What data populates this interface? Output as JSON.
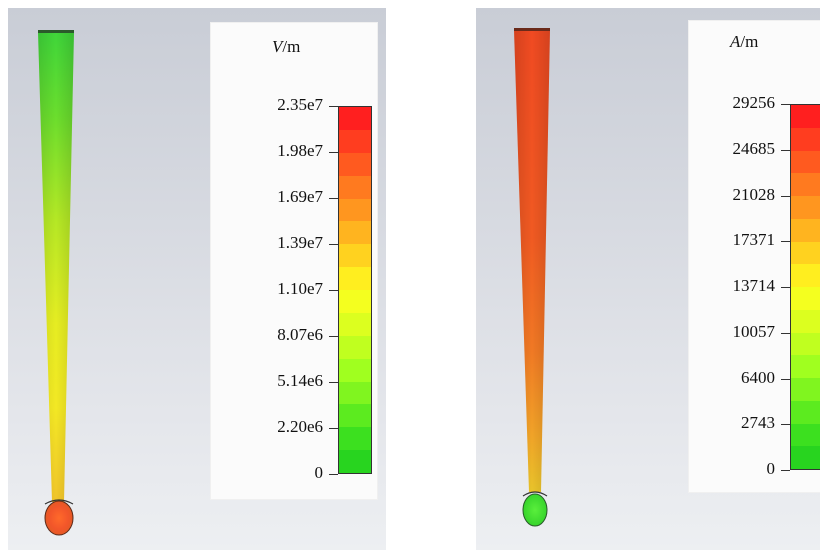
{
  "panels": [
    {
      "id": "e-field",
      "unit_var": "V",
      "unit_suffix": "/m",
      "ticks": [
        "2.35e7",
        "1.98e7",
        "1.69e7",
        "1.39e7",
        "1.10e7",
        "8.07e6",
        "5.14e6",
        "2.20e6",
        "0"
      ],
      "colorbar": [
        "#ff1f1f",
        "#ff3d1f",
        "#ff5a1f",
        "#ff7a1f",
        "#ff961f",
        "#ffb41f",
        "#ffd21f",
        "#ffee1f",
        "#f4ff1f",
        "#dcff1f",
        "#c0ff1f",
        "#a0ff1f",
        "#80f51f",
        "#5ceb1f",
        "#3ce01f",
        "#28d41f"
      ]
    },
    {
      "id": "h-field",
      "unit_var": "A",
      "unit_suffix": "/m",
      "ticks": [
        "29256",
        "24685",
        "21028",
        "17371",
        "13714",
        "10057",
        "6400",
        "2743",
        "0"
      ],
      "colorbar": [
        "#ff1f1f",
        "#ff3d1f",
        "#ff5a1f",
        "#ff7a1f",
        "#ff961f",
        "#ffb41f",
        "#ffd21f",
        "#ffee1f",
        "#f4ff1f",
        "#dcff1f",
        "#c0ff1f",
        "#a0ff1f",
        "#80f51f",
        "#5ceb1f",
        "#3ce01f",
        "#28d41f"
      ]
    }
  ]
}
